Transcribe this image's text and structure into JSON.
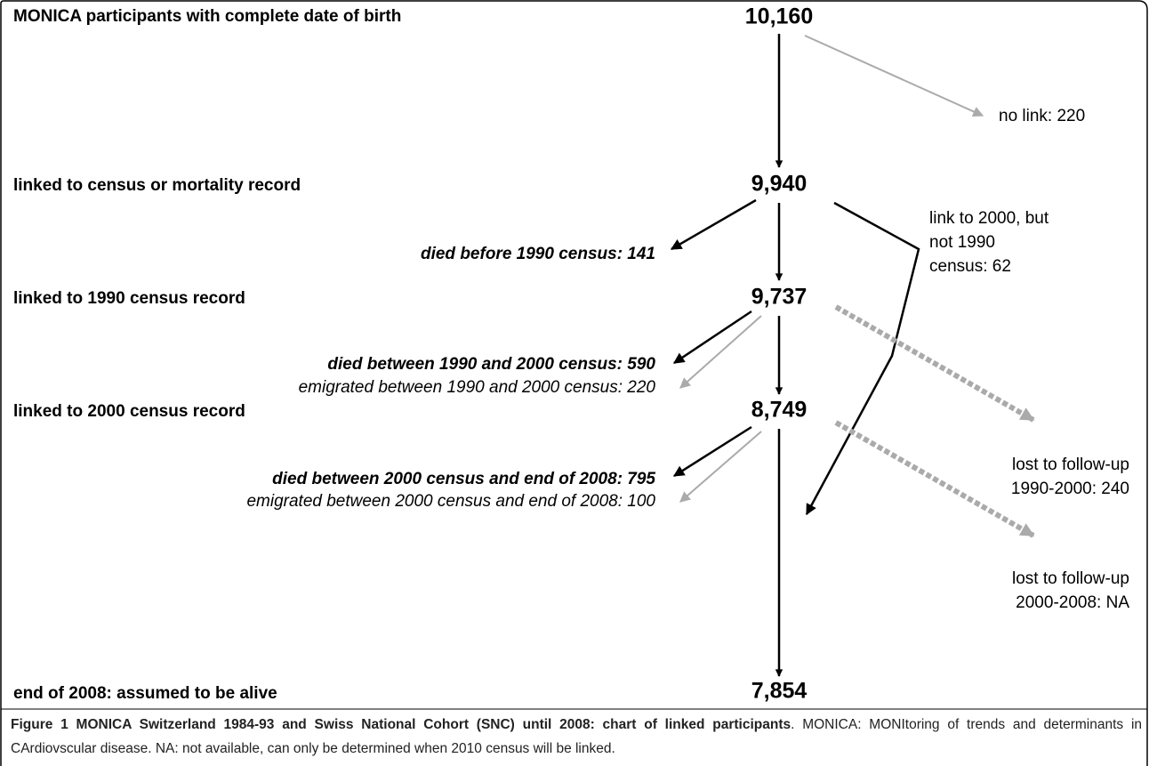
{
  "stages": [
    {
      "label": "MONICA participants with complete date of birth",
      "count": "10,160"
    },
    {
      "label": "linked to census or mortality record",
      "count": "9,940"
    },
    {
      "label": "linked to 1990 census record",
      "count": "9,737"
    },
    {
      "label": "linked to 2000 census record",
      "count": "8,749"
    },
    {
      "label": "end of 2008: assumed to be alive",
      "count": "7,854"
    }
  ],
  "no_link": "no link: 220",
  "died_before_1990": "died before 1990 census: 141",
  "link_2000_not_1990": [
    "link to 2000, but",
    "not 1990",
    "census: 62"
  ],
  "died_1990_2000": "died between 1990 and 2000 census: 590",
  "emigrated_1990_2000": "emigrated between 1990 and 2000 census: 220",
  "lost_1990_2000": [
    "lost to follow-up",
    "1990-2000: 240"
  ],
  "died_2000_2008": "died between 2000 census and end of 2008: 795",
  "emigrated_2000_2008": "emigrated between 2000 census and end of 2008: 100",
  "lost_2000_2008": [
    "lost to follow-up",
    "2000-2008: NA"
  ],
  "caption": {
    "title": "Figure 1 MONICA Switzerland 1984-93 and Swiss National Cohort (SNC) until 2008: chart of linked participants",
    "text_line1": ". MONICA: MONItoring of trends and determinants in CArdiovscular disease. NA: not available, can only be determined when 2010 census will be linked."
  }
}
